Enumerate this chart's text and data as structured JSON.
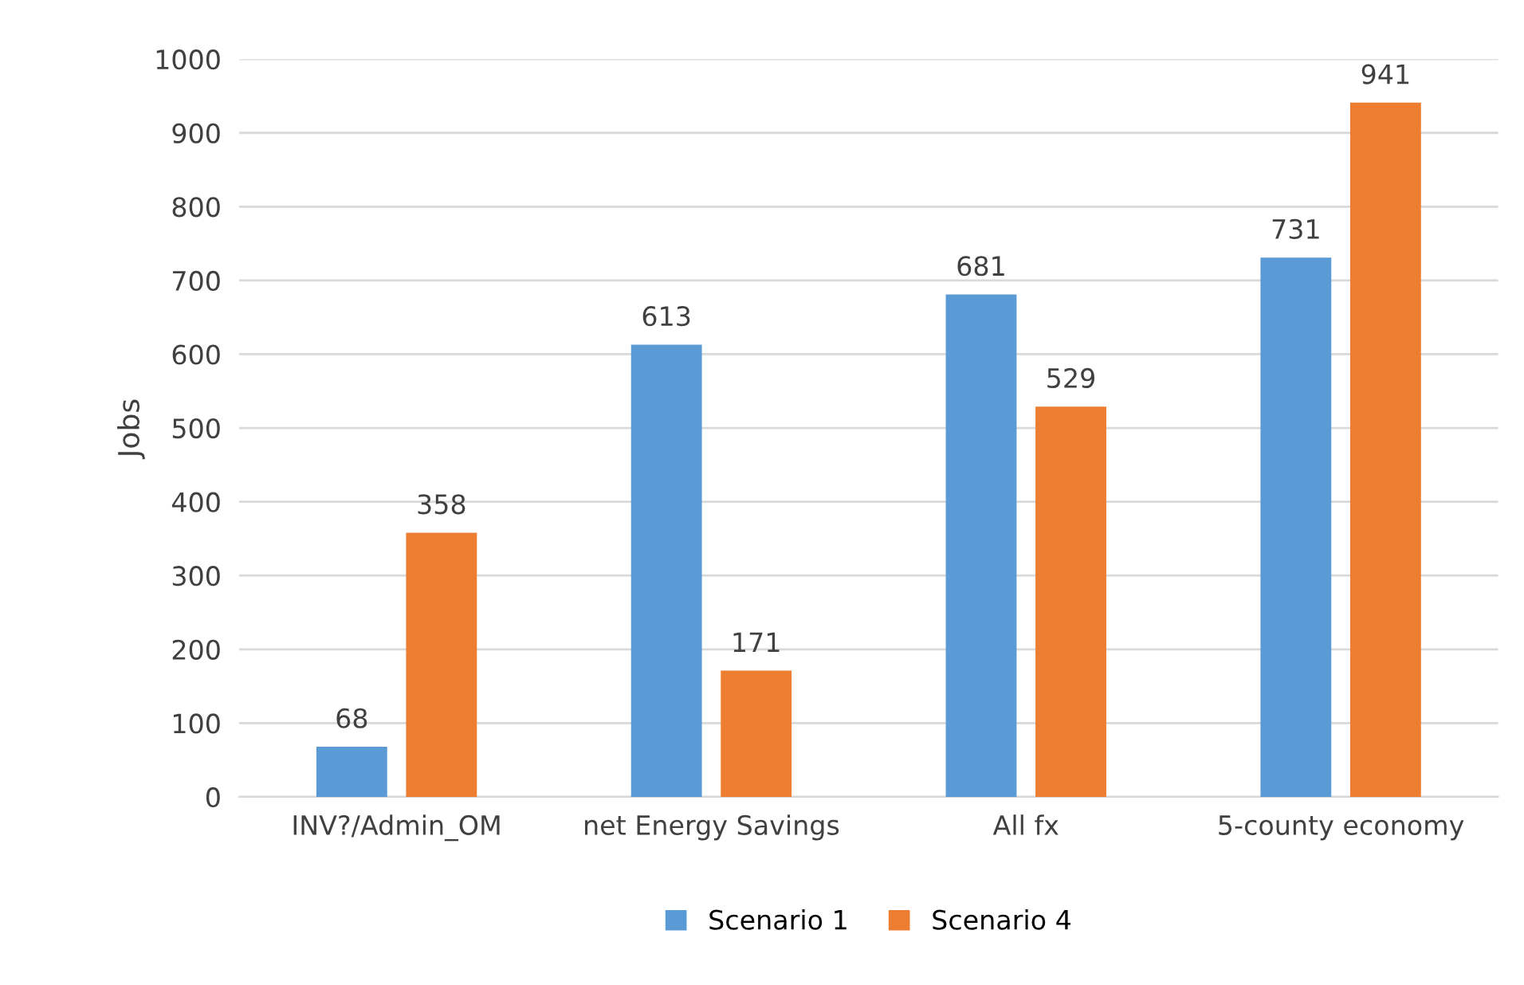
{
  "chart_data": {
    "type": "bar",
    "ylabel": "Jobs",
    "categories": [
      "INV?/Admin_OM",
      "net Energy Savings",
      "All fx",
      "5-county economy"
    ],
    "series": [
      {
        "name": "Scenario 1",
        "color": "#5b9bd5",
        "values": [
          68,
          613,
          681,
          731
        ]
      },
      {
        "name": "Scenario 4",
        "color": "#ed7d31",
        "values": [
          358,
          171,
          529,
          941
        ]
      }
    ],
    "ylim": [
      0,
      1000
    ],
    "yticks": [
      0,
      100,
      200,
      300,
      400,
      500,
      600,
      700,
      800,
      900,
      1000
    ],
    "grid": "y",
    "legend": "bottom",
    "data_labels": true
  }
}
